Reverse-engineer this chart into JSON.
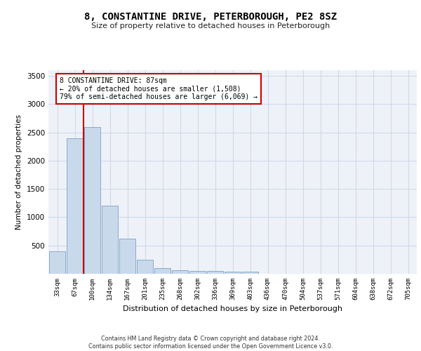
{
  "title": "8, CONSTANTINE DRIVE, PETERBOROUGH, PE2 8SZ",
  "subtitle": "Size of property relative to detached houses in Peterborough",
  "xlabel": "Distribution of detached houses by size in Peterborough",
  "ylabel": "Number of detached properties",
  "categories": [
    "33sqm",
    "67sqm",
    "100sqm",
    "134sqm",
    "167sqm",
    "201sqm",
    "235sqm",
    "268sqm",
    "302sqm",
    "336sqm",
    "369sqm",
    "403sqm",
    "436sqm",
    "470sqm",
    "504sqm",
    "537sqm",
    "571sqm",
    "604sqm",
    "638sqm",
    "672sqm",
    "705sqm"
  ],
  "values": [
    400,
    2400,
    2600,
    1200,
    625,
    250,
    100,
    60,
    55,
    50,
    40,
    35,
    5,
    3,
    2,
    2,
    1,
    1,
    1,
    1,
    1
  ],
  "bar_color": "#c9d9ec",
  "bar_edge_color": "#7aa0c4",
  "grid_color": "#d0d8e8",
  "background_color": "#eef2f8",
  "vline_color": "#cc0000",
  "annotation_text": "8 CONSTANTINE DRIVE: 87sqm\n← 20% of detached houses are smaller (1,508)\n79% of semi-detached houses are larger (6,069) →",
  "annotation_box_color": "#ffffff",
  "annotation_box_edge": "#cc0000",
  "footer": "Contains HM Land Registry data © Crown copyright and database right 2024.\nContains public sector information licensed under the Open Government Licence v3.0.",
  "ylim": [
    0,
    3600
  ],
  "yticks": [
    0,
    500,
    1000,
    1500,
    2000,
    2500,
    3000,
    3500
  ]
}
